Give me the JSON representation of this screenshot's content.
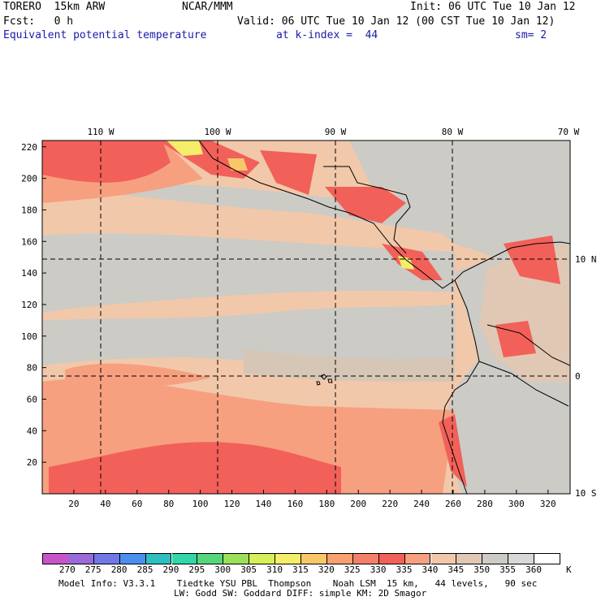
{
  "header": {
    "model": "TORERO  15km ARW",
    "org": "NCAR/MMM",
    "init": "Init: 06 UTC Tue 10 Jan 12",
    "fcst": "Fcst:   0 h",
    "valid": "Valid: 06 UTC Tue 10 Jan 12 (00 CST Tue 10 Jan 12)",
    "field": "Equivalent potential temperature",
    "level": "at k-index =  44",
    "smooth": "sm= 2"
  },
  "map": {
    "lon_labels": [
      "110 W",
      "100 W",
      "90 W",
      "80 W",
      "70 W"
    ],
    "lat_labels": [
      "10 N",
      "0",
      "10 S"
    ],
    "y_ticks": [
      "220",
      "200",
      "180",
      "160",
      "140",
      "120",
      "100",
      "80",
      "60",
      "40",
      "20"
    ],
    "x_ticks": [
      "20",
      "40",
      "60",
      "80",
      "100",
      "120",
      "140",
      "160",
      "180",
      "200",
      "220",
      "240",
      "260",
      "280",
      "300",
      "320"
    ]
  },
  "colorbar": {
    "labels": [
      "270",
      "275",
      "280",
      "285",
      "290",
      "295",
      "300",
      "305",
      "310",
      "315",
      "320",
      "325",
      "330",
      "335",
      "340",
      "345",
      "350",
      "355",
      "360"
    ],
    "unit": "K",
    "colors": [
      "#c855c8",
      "#9a6ad8",
      "#6f78e6",
      "#4c8ef0",
      "#2ec0c0",
      "#33d6a8",
      "#55d67a",
      "#9ae05a",
      "#d8ee5a",
      "#f4ee6a",
      "#f8c868",
      "#f8a070",
      "#f47e6a",
      "#f2605a",
      "#f6a080",
      "#f2c8aa",
      "#e0c8b4",
      "#cccbc5",
      "#d8d8d8",
      "#ffffff"
    ]
  },
  "footer": {
    "line1": "Model Info: V3.3.1    Tiedtke YSU PBL  Thompson    Noah LSM  15 km,   44 levels,   90 sec",
    "line2": "LW: Godd SW: Goddard DIFF: simple KM: 2D Smagor"
  }
}
